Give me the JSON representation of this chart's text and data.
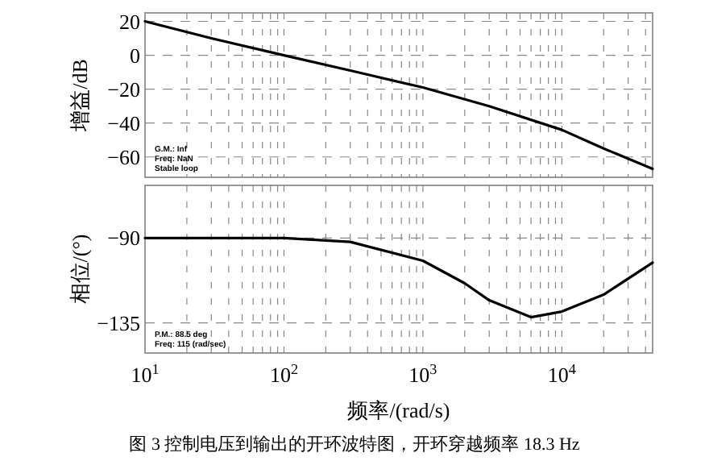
{
  "chart_data": [
    {
      "type": "line",
      "ylabel": "增益/dB",
      "log": "x",
      "grid": true,
      "tick_labels": "y",
      "color": "#000000",
      "xlim": [
        10,
        45000
      ],
      "ylim": [
        -72,
        25
      ],
      "yticks": [
        20,
        0,
        -20,
        -40,
        -60
      ],
      "x": [
        10,
        30,
        100,
        300,
        1000,
        3000,
        10000,
        20000,
        45000
      ],
      "values": [
        20,
        10,
        0,
        -9,
        -19,
        -30,
        -44,
        -55,
        -67
      ],
      "annotations": [
        "G.M.: Inf",
        "Freq: NaN",
        "Stable loop"
      ]
    },
    {
      "type": "line",
      "ylabel": "相位/(°)",
      "xlabel": "频率/(rad/s)",
      "log": "x",
      "grid": true,
      "color": "#000000",
      "xlim": [
        10,
        45000
      ],
      "ylim": [
        -151,
        -62
      ],
      "xticks": [
        {
          "value": 10,
          "label": "10$^{1}$"
        },
        {
          "value": 100,
          "label": "10$^{2}$"
        },
        {
          "value": 1000,
          "label": "10$^{3}$"
        },
        {
          "value": 10000,
          "label": "10$^{4}$"
        }
      ],
      "yticks": [
        -90,
        -135
      ],
      "x": [
        10,
        100,
        300,
        1000,
        2000,
        3000,
        6000,
        10000,
        20000,
        45000
      ],
      "values": [
        -90,
        -90,
        -92,
        -102,
        -114,
        -123,
        -132,
        -129,
        -120,
        -103
      ],
      "annotations": [
        "P.M.: 88.5 deg",
        "Freq: 115 (rad/sec)",
        "图 3  控制电压到输出的开环波特图，开环穿越频率 18.3 Hz"
      ]
    }
  ]
}
